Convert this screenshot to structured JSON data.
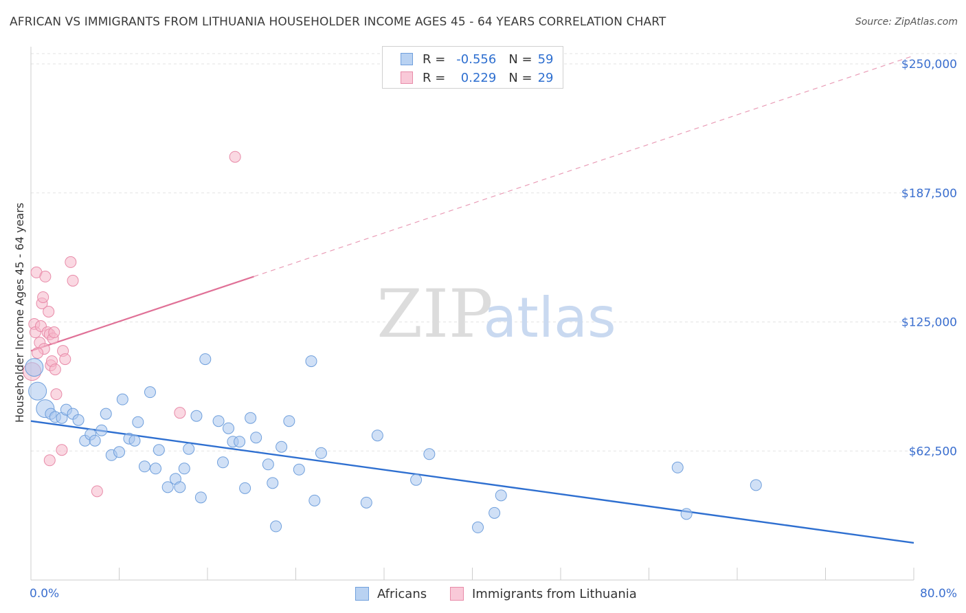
{
  "title": "AFRICAN VS IMMIGRANTS FROM LITHUANIA HOUSEHOLDER INCOME AGES 45 - 64 YEARS CORRELATION CHART",
  "source": "Source: ZipAtlas.com",
  "watermark": {
    "zip": "ZIP",
    "atlas": "atlas"
  },
  "colors": {
    "africans_fill": "#a9c7ee",
    "africans_stroke": "#6f9fdc",
    "africans_line": "#2e6fd0",
    "lithuania_fill": "#f6b8cb",
    "lithuania_stroke": "#e88aa8",
    "lithuania_line": "#e07197",
    "grid": "#e3e3e3",
    "tick_text": "#3b6fcf"
  },
  "legend": {
    "rows": [
      {
        "r_label": "R =",
        "r_value": "-0.556",
        "n_label": "N =",
        "n_value": "59"
      },
      {
        "r_label": "R =",
        "r_value": "0.229",
        "n_label": "N =",
        "n_value": "29"
      }
    ]
  },
  "bottom_legend": {
    "africans": "Africans",
    "lithuania": "Immigrants from Lithuania"
  },
  "chart_data": {
    "type": "scatter",
    "title": "AFRICAN VS IMMIGRANTS FROM LITHUANIA HOUSEHOLDER INCOME AGES 45 - 64 YEARS CORRELATION CHART",
    "xlabel": "",
    "ylabel": "Householder Income Ages 45 - 64 years",
    "xlim": [
      0,
      80
    ],
    "ylim": [
      0,
      256000
    ],
    "x_tick_labels": [
      "0.0%",
      "80.0%"
    ],
    "y_ticks": [
      62500,
      125000,
      187500,
      250000
    ],
    "y_tick_labels": [
      "$62,500",
      "$125,000",
      "$187,500",
      "$250,000"
    ],
    "grid": true,
    "legend_position": "top-center",
    "series": [
      {
        "name": "Africans",
        "r": -0.556,
        "n": 59,
        "trend": {
          "x": [
            0,
            80
          ],
          "y": [
            77000,
            18000
          ],
          "style": "solid"
        },
        "points": [
          [
            0.3,
            103000,
            "large"
          ],
          [
            0.6,
            91500,
            "large"
          ],
          [
            1.3,
            83000,
            "large"
          ],
          [
            1.8,
            80500
          ],
          [
            2.2,
            79000
          ],
          [
            2.8,
            78500
          ],
          [
            3.2,
            82500
          ],
          [
            3.8,
            80500
          ],
          [
            4.3,
            77500
          ],
          [
            4.9,
            67500
          ],
          [
            5.4,
            70500
          ],
          [
            5.8,
            67500
          ],
          [
            6.4,
            72500
          ],
          [
            6.8,
            80500
          ],
          [
            7.3,
            60500
          ],
          [
            8.0,
            62000
          ],
          [
            8.3,
            87500
          ],
          [
            8.9,
            68500
          ],
          [
            9.4,
            67500
          ],
          [
            9.7,
            76500
          ],
          [
            10.3,
            55000
          ],
          [
            10.8,
            91000
          ],
          [
            11.3,
            54000
          ],
          [
            11.6,
            63000
          ],
          [
            12.4,
            45000
          ],
          [
            13.1,
            49000
          ],
          [
            13.5,
            45000
          ],
          [
            13.9,
            54000
          ],
          [
            14.3,
            63500
          ],
          [
            15.0,
            79500
          ],
          [
            15.4,
            40000
          ],
          [
            15.8,
            107000
          ],
          [
            17.0,
            77000
          ],
          [
            17.4,
            57000
          ],
          [
            17.9,
            73500
          ],
          [
            18.3,
            67000
          ],
          [
            18.9,
            67000
          ],
          [
            19.4,
            44500
          ],
          [
            19.9,
            78500
          ],
          [
            20.4,
            69000
          ],
          [
            21.5,
            56000
          ],
          [
            21.9,
            47000
          ],
          [
            22.2,
            26000
          ],
          [
            22.7,
            64500
          ],
          [
            23.4,
            77000
          ],
          [
            24.3,
            53500
          ],
          [
            25.4,
            106000
          ],
          [
            25.7,
            38500
          ],
          [
            26.3,
            61500
          ],
          [
            30.4,
            37500
          ],
          [
            31.4,
            70000
          ],
          [
            34.9,
            48500
          ],
          [
            36.1,
            61000
          ],
          [
            40.5,
            25500
          ],
          [
            42.0,
            32500
          ],
          [
            42.6,
            41000
          ],
          [
            58.6,
            54500
          ],
          [
            59.4,
            32000
          ],
          [
            65.7,
            46000
          ]
        ]
      },
      {
        "name": "Immigrants from Lithuania",
        "r": 0.229,
        "n": 29,
        "trend": {
          "solid": {
            "x": [
              0,
              20.2
            ],
            "y": [
              111000,
              147000
            ]
          },
          "dashed": {
            "x": [
              20.2,
              80
            ],
            "y": [
              147000,
              254000
            ]
          }
        },
        "points": [
          [
            0.1,
            101000,
            "large"
          ],
          [
            0.3,
            124000
          ],
          [
            0.4,
            120000
          ],
          [
            0.5,
            149000
          ],
          [
            0.8,
            115000
          ],
          [
            0.9,
            123000
          ],
          [
            1.0,
            134000
          ],
          [
            1.1,
            137000
          ],
          [
            1.2,
            112000
          ],
          [
            1.3,
            147000
          ],
          [
            1.5,
            120000
          ],
          [
            1.6,
            130000
          ],
          [
            1.7,
            119000
          ],
          [
            1.8,
            104000
          ],
          [
            1.9,
            106000
          ],
          [
            2.0,
            117000
          ],
          [
            2.1,
            120000
          ],
          [
            2.2,
            102000
          ],
          [
            2.3,
            90000
          ],
          [
            2.9,
            111000
          ],
          [
            3.1,
            107000
          ],
          [
            3.6,
            154000
          ],
          [
            3.8,
            145000
          ],
          [
            2.8,
            63000
          ],
          [
            1.7,
            58000
          ],
          [
            6.0,
            43000
          ],
          [
            13.5,
            81000
          ],
          [
            18.5,
            205000
          ],
          [
            0.6,
            110000
          ]
        ]
      }
    ]
  }
}
